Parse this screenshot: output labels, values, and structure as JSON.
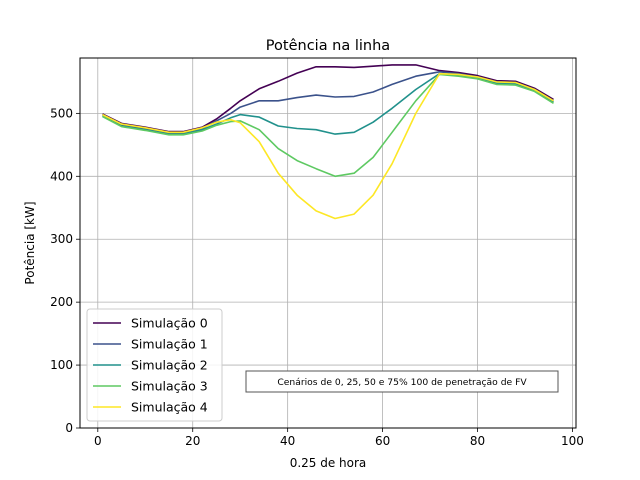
{
  "chart_data": {
    "type": "line",
    "title": "Potência na linha",
    "xlabel": "0.25 de hora",
    "ylabel": "Potência [kW]",
    "xlim": [
      -3.75,
      100.75
    ],
    "ylim": [
      0,
      588
    ],
    "xticks": [
      0,
      20,
      40,
      60,
      80,
      100
    ],
    "yticks": [
      0,
      100,
      200,
      300,
      400,
      500
    ],
    "grid": true,
    "legend_position": "lower left",
    "annotation": "Cenários de 0, 25, 50 e 75% 100 de penetração de FV",
    "series": [
      {
        "name": "Simulação 0",
        "color": "#440154",
        "x": [
          1,
          5,
          10,
          15,
          18,
          22,
          25,
          28,
          30,
          34,
          38,
          42,
          46,
          50,
          54,
          58,
          62,
          67,
          72,
          76,
          80,
          84,
          88,
          92,
          96
        ],
        "y": [
          499,
          484,
          478,
          471,
          471,
          478,
          491,
          508,
          520,
          539,
          551,
          564,
          574,
          574,
          573,
          575,
          577,
          577,
          568,
          565,
          560,
          552,
          551,
          540,
          522
        ]
      },
      {
        "name": "Simulação 1",
        "color": "#3b528b",
        "x": [
          1,
          5,
          10,
          15,
          18,
          22,
          25,
          28,
          30,
          34,
          38,
          42,
          46,
          50,
          54,
          58,
          62,
          67,
          72,
          76,
          80,
          84,
          88,
          92,
          96
        ],
        "y": [
          497,
          482,
          476,
          469,
          469,
          476,
          488,
          500,
          510,
          520,
          520,
          525,
          529,
          526,
          527,
          534,
          546,
          559,
          566,
          563,
          558,
          550,
          549,
          538,
          520
        ]
      },
      {
        "name": "Simulação 2",
        "color": "#21918c",
        "x": [
          1,
          5,
          10,
          15,
          18,
          22,
          25,
          28,
          30,
          34,
          38,
          42,
          46,
          50,
          54,
          58,
          62,
          67,
          72,
          76,
          80,
          84,
          88,
          92,
          96
        ],
        "y": [
          496,
          480,
          474,
          467,
          467,
          474,
          483,
          493,
          498,
          494,
          480,
          476,
          474,
          467,
          470,
          486,
          508,
          538,
          563,
          560,
          556,
          548,
          547,
          537,
          518
        ]
      },
      {
        "name": "Simulação 3",
        "color": "#5ec962",
        "x": [
          1,
          5,
          10,
          15,
          18,
          22,
          25,
          28,
          30,
          34,
          38,
          42,
          46,
          50,
          54,
          58,
          62,
          67,
          72,
          76,
          80,
          84,
          88,
          92,
          96
        ],
        "y": [
          495,
          479,
          473,
          466,
          466,
          472,
          481,
          487,
          488,
          474,
          444,
          425,
          412,
          400,
          405,
          430,
          470,
          520,
          562,
          559,
          555,
          546,
          545,
          535,
          516
        ]
      },
      {
        "name": "Simulação 4",
        "color": "#fde725",
        "x": [
          1,
          5,
          10,
          15,
          18,
          22,
          25,
          28,
          30,
          34,
          38,
          42,
          46,
          50,
          54,
          58,
          62,
          67,
          72,
          76,
          80,
          84,
          88,
          92,
          96
        ],
        "y": [
          498,
          483,
          477,
          470,
          470,
          477,
          486,
          490,
          485,
          455,
          405,
          370,
          345,
          333,
          340,
          370,
          420,
          500,
          563,
          562,
          558,
          550,
          549,
          538,
          520
        ]
      }
    ]
  }
}
